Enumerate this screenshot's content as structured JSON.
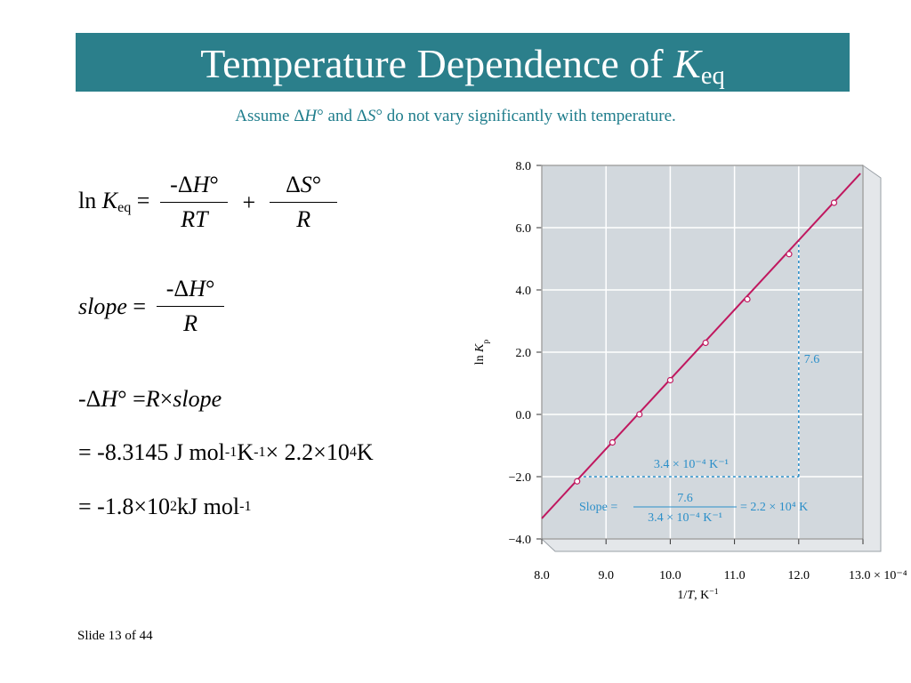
{
  "header": {
    "title": [
      {
        "text": "Temperature Dependence of "
      },
      {
        "text": "K",
        "style": "italic"
      },
      {
        "text": "eq",
        "style": "sub"
      }
    ],
    "subtitle": [
      {
        "text": "Assume Δ"
      },
      {
        "text": "H",
        "style": "italic"
      },
      {
        "text": "° and Δ"
      },
      {
        "text": "S",
        "style": "italic"
      },
      {
        "text": "° do not vary significantly with temperature."
      }
    ]
  },
  "equations": {
    "ln_k": {
      "lhs": [
        {
          "text": "ln "
        },
        {
          "text": "K",
          "style": "italic"
        },
        {
          "text": "eq",
          "style": "sub"
        },
        {
          "text": " ="
        }
      ],
      "term1": {
        "numerator": [
          {
            "text": "-Δ"
          },
          {
            "text": "H",
            "style": "italic"
          },
          {
            "text": "°"
          }
        ],
        "denominator": [
          {
            "text": "RT",
            "style": "italic"
          }
        ]
      },
      "operator": "+",
      "term2": {
        "numerator": [
          {
            "text": "Δ"
          },
          {
            "text": "S",
            "style": "italic"
          },
          {
            "text": "°"
          }
        ],
        "denominator": [
          {
            "text": "R",
            "style": "italic"
          }
        ]
      }
    },
    "slope": {
      "lhs": [
        {
          "text": "slope",
          "style": "italic"
        },
        {
          "text": " ="
        }
      ],
      "term1": {
        "numerator": [
          {
            "text": "-Δ"
          },
          {
            "text": "H",
            "style": "italic"
          },
          {
            "text": "°"
          }
        ],
        "denominator": [
          {
            "text": "R",
            "style": "italic"
          }
        ]
      }
    },
    "lines": [
      [
        {
          "text": "-Δ"
        },
        {
          "text": "H",
          "style": "italic"
        },
        {
          "text": "° = "
        },
        {
          "text": "R",
          "style": "italic"
        },
        {
          "text": " × "
        },
        {
          "text": "slope",
          "style": "italic"
        }
      ],
      [
        {
          "text": "= -8.3145 J mol"
        },
        {
          "text": "-1",
          "style": "sup"
        },
        {
          "text": " K"
        },
        {
          "text": "-1",
          "style": "sup"
        },
        {
          "text": " × 2.2×10"
        },
        {
          "text": "4",
          "style": "sup"
        },
        {
          "text": " K"
        }
      ],
      [
        {
          "text": "= -1.8×10"
        },
        {
          "text": "2",
          "style": "sup"
        },
        {
          "text": " kJ mol"
        },
        {
          "text": "-1",
          "style": "sup"
        }
      ]
    ]
  },
  "chart_data": {
    "type": "scatter",
    "x_label": [
      {
        "text": "1/"
      },
      {
        "text": "T",
        "style": "italic"
      },
      {
        "text": ", K"
      },
      {
        "text": "−1",
        "style": "sup"
      }
    ],
    "y_label": [
      {
        "text": "ln "
      },
      {
        "text": "K",
        "style": "italic"
      },
      {
        "text": "p",
        "style": "sub"
      }
    ],
    "x": [
      8.55,
      9.1,
      9.52,
      10.0,
      10.55,
      11.2,
      11.85,
      12.55
    ],
    "values": [
      -2.15,
      -0.9,
      0.0,
      1.1,
      2.3,
      3.7,
      5.15,
      6.8
    ],
    "color": "#c0185f",
    "fit_line": {
      "x": [
        8.0,
        12.96
      ],
      "values": [
        -3.34,
        7.74
      ]
    },
    "xlim": [
      8,
      13
    ],
    "ylim": [
      -4,
      8
    ],
    "xticks": [
      {
        "value": 8,
        "label": "8.0"
      },
      {
        "value": 9,
        "label": "9.0"
      },
      {
        "value": 10,
        "label": "10.0"
      },
      {
        "value": 11,
        "label": "11.0"
      },
      {
        "value": 12,
        "label": "12.0"
      },
      {
        "value": 13,
        "label": "13.0 × 10⁻⁴"
      }
    ],
    "yticks": [
      {
        "value": -4,
        "label": "−4.0"
      },
      {
        "value": -2,
        "label": "−2.0"
      },
      {
        "value": 0,
        "label": "0.0"
      },
      {
        "value": 2,
        "label": "2.0"
      },
      {
        "value": 4,
        "label": "4.0"
      },
      {
        "value": 6,
        "label": "6.0"
      },
      {
        "value": 8,
        "label": "8.0"
      }
    ],
    "grid": true,
    "annotations": {
      "color": "#2b8fc9",
      "rise": {
        "x": [
          12.0,
          12.0
        ],
        "values": [
          -2.0,
          5.6
        ],
        "label": "7.6"
      },
      "run": {
        "x": [
          8.65,
          12.0
        ],
        "values": [
          -2.0,
          -2.0
        ],
        "label": "3.4 × 10⁻⁴ K⁻¹"
      },
      "slope": {
        "prefix": "Slope =",
        "numerator": "7.6",
        "denominator": "3.4 × 10⁻⁴ K⁻¹",
        "result": "= 2.2 × 10⁴ K"
      }
    }
  },
  "footer": {
    "slide": "Slide 13 of 44"
  }
}
